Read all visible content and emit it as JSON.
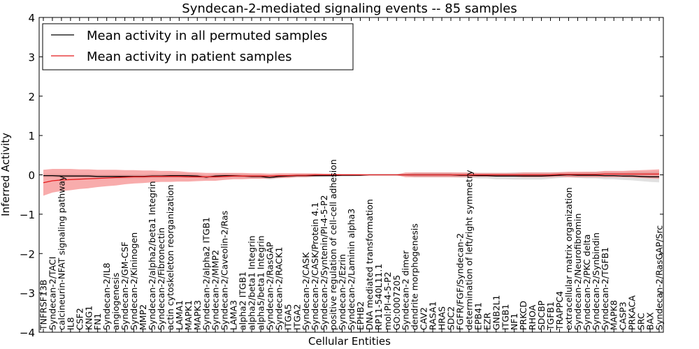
{
  "chart_data": {
    "type": "line",
    "title": "Syndecan-2-mediated signaling events -- 85 samples",
    "xlabel": "Cellular Entities",
    "ylabel": "Inferred Activity",
    "ylim": [
      -4,
      4
    ],
    "yticks": [
      -4,
      -3,
      -2,
      -1,
      0,
      1,
      2,
      3,
      4
    ],
    "grid": false,
    "legend_position": "top-left",
    "categories": [
      "TNFRSF13B",
      "Syndecan-2/TACI",
      "calcineurin-NFAT signaling pathway",
      "IL8",
      "CSF2",
      "KNG1",
      "FN1",
      "Syndecan-2/IL8",
      "angiogenesis",
      "Syndecan-2/GM-CSF",
      "Syndecan-2/Kininogen",
      "MMP2",
      "Syndecan-2/alpha2/beta1 Integrin",
      "Syndecan-2/Fibronectin",
      "actin cytoskeleton reorganization",
      "LAMA1",
      "MAPK1",
      "MAPK3",
      "Syndecan-2/alpha2 ITGB1",
      "Syndecan-2/MMP2",
      "Syndecan-2/Caveolin-2/Ras",
      "LAMA3",
      "alpha2 ITGB1",
      "alpha2/beta1 Integrin",
      "alpha5/beta1 Integrin",
      "Syndecan-2/RasGAP",
      "Syndecan-2/RACK1",
      "ITGA5",
      "ITGA2",
      "Syndecan-2/CASK",
      "Syndecan-2/CASK/Protein 4.1",
      "Syndecan-2/Syntenin/PI-4-5-P2",
      "positive regulation of cell-cell adhesion",
      "Syndecan-2/Ezrin",
      "Syndecan-2/Laminin alpha3",
      "EPHB2",
      "DNA mediated transformation",
      "RP11-540L11.1",
      "mol:PI-4-5-P2",
      "GO:0007205",
      "Syndecan-2 dimer",
      "dendrite morphogenesis",
      "CAV2",
      "RASA1",
      "HRAS",
      "SDC2",
      "FGFR/FGF/Syndecan-2",
      "determination of left/right symmetry",
      "EPB41",
      "EZR",
      "GNB2L1",
      "ITGB1",
      "NF1",
      "PRKCD",
      "RHOA",
      "SDCBP",
      "TGFB1",
      "TRAPPC4",
      "extracellular matrix organization",
      "Syndecan-2/Neurofibromin",
      "Syndecan-2/PKC delta",
      "Syndecan-2/Synbindin",
      "Syndecan-2/TGFB1",
      "MAPK8",
      "CASP3",
      "PRKACA",
      "SRC",
      "BAX",
      "Syndecan-2/RasGAP/Src"
    ],
    "series": [
      {
        "name": "Mean activity in all permuted samples",
        "color": "#000000",
        "values": [
          -0.02,
          -0.02,
          -0.03,
          -0.03,
          -0.03,
          -0.03,
          -0.04,
          -0.04,
          -0.04,
          -0.04,
          -0.04,
          -0.04,
          -0.03,
          -0.03,
          -0.02,
          -0.02,
          -0.02,
          -0.03,
          -0.06,
          -0.03,
          -0.02,
          -0.02,
          -0.03,
          -0.04,
          -0.04,
          -0.07,
          -0.04,
          -0.03,
          -0.02,
          -0.02,
          -0.02,
          -0.02,
          -0.02,
          -0.01,
          -0.01,
          -0.01,
          0.0,
          0.0,
          0.0,
          0.0,
          0.0,
          0.0,
          0.0,
          0.0,
          0.0,
          0.0,
          -0.01,
          -0.01,
          -0.02,
          -0.02,
          -0.03,
          -0.03,
          -0.03,
          -0.03,
          -0.03,
          -0.03,
          -0.02,
          -0.01,
          0.0,
          -0.01,
          -0.01,
          -0.01,
          -0.02,
          -0.02,
          -0.03,
          -0.03,
          -0.04,
          -0.05,
          -0.05
        ],
        "band": [
          0.04,
          0.04,
          0.05,
          0.05,
          0.05,
          0.05,
          0.05,
          0.05,
          0.05,
          0.05,
          0.05,
          0.05,
          0.05,
          0.05,
          0.05,
          0.05,
          0.05,
          0.05,
          0.05,
          0.05,
          0.05,
          0.05,
          0.05,
          0.05,
          0.05,
          0.05,
          0.05,
          0.04,
          0.04,
          0.04,
          0.04,
          0.04,
          0.03,
          0.03,
          0.03,
          0.02,
          0.01,
          0.01,
          0.01,
          0.01,
          0.02,
          0.06,
          0.06,
          0.06,
          0.06,
          0.06,
          0.06,
          0.06,
          0.07,
          0.07,
          0.08,
          0.08,
          0.09,
          0.09,
          0.09,
          0.09,
          0.08,
          0.07,
          0.06,
          0.07,
          0.08,
          0.08,
          0.09,
          0.09,
          0.1,
          0.11,
          0.12,
          0.13,
          0.14
        ]
      },
      {
        "name": "Mean activity in patient samples",
        "color": "#e31a1c",
        "values": [
          -0.2,
          -0.15,
          -0.13,
          -0.12,
          -0.11,
          -0.1,
          -0.09,
          -0.08,
          -0.07,
          -0.06,
          -0.05,
          -0.05,
          -0.04,
          -0.04,
          -0.04,
          -0.04,
          -0.05,
          -0.05,
          -0.05,
          -0.05,
          -0.04,
          -0.03,
          -0.03,
          -0.03,
          -0.03,
          -0.03,
          -0.02,
          -0.02,
          -0.01,
          -0.01,
          0.0,
          0.0,
          0.0,
          0.0,
          0.0,
          0.0,
          0.0,
          0.0,
          0.0,
          0.0,
          0.0,
          0.0,
          0.0,
          0.0,
          0.0,
          0.0,
          0.0,
          0.0,
          0.0,
          0.0,
          0.0,
          0.0,
          0.0,
          0.0,
          0.0,
          0.0,
          0.0,
          0.01,
          0.01,
          0.01,
          0.01,
          0.01,
          0.02,
          0.02,
          0.02,
          0.02,
          0.02,
          0.02,
          0.02
        ],
        "band": [
          0.33,
          0.3,
          0.28,
          0.27,
          0.25,
          0.24,
          0.22,
          0.21,
          0.2,
          0.18,
          0.17,
          0.16,
          0.15,
          0.14,
          0.14,
          0.13,
          0.12,
          0.11,
          0.1,
          0.1,
          0.09,
          0.08,
          0.08,
          0.07,
          0.07,
          0.06,
          0.06,
          0.06,
          0.05,
          0.05,
          0.04,
          0.03,
          0.03,
          0.02,
          0.02,
          0.02,
          0.01,
          0.01,
          0.01,
          0.01,
          0.06,
          0.06,
          0.06,
          0.06,
          0.06,
          0.06,
          0.06,
          0.06,
          0.05,
          0.05,
          0.05,
          0.05,
          0.05,
          0.06,
          0.06,
          0.06,
          0.06,
          0.06,
          0.07,
          0.07,
          0.07,
          0.07,
          0.08,
          0.08,
          0.08,
          0.09,
          0.1,
          0.11,
          0.12
        ]
      }
    ]
  }
}
